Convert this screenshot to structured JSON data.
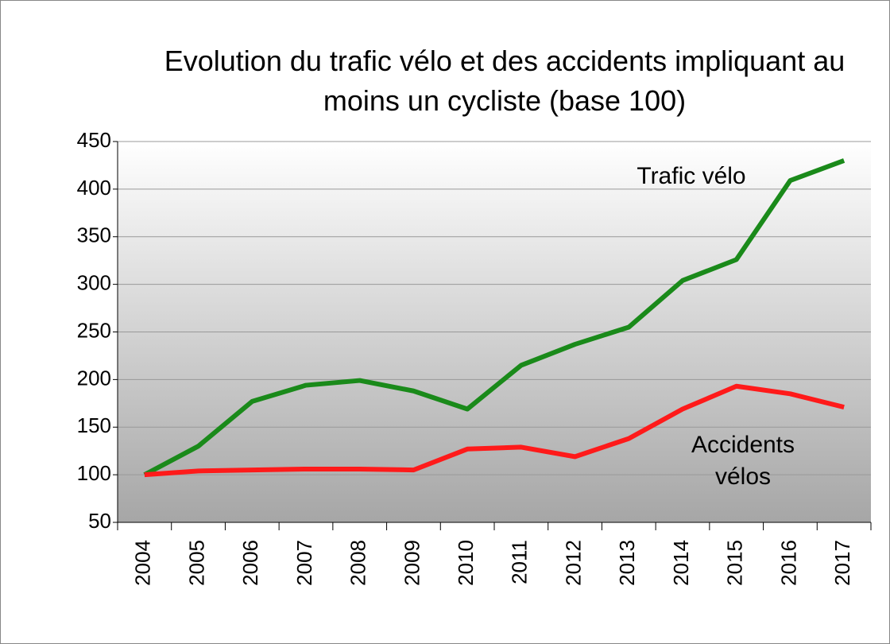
{
  "chart_data": {
    "type": "line",
    "title": "Evolution du trafic vélo et des accidents impliquant au moins un cycliste (base 100)",
    "categories": [
      "2004",
      "2005",
      "2006",
      "2007",
      "2008",
      "2009",
      "2010",
      "2011",
      "2012",
      "2013",
      "2014",
      "2015",
      "2016",
      "2017"
    ],
    "series": [
      {
        "name": "Trafic vélo",
        "color": "#1a8a1a",
        "values": [
          100,
          130,
          177,
          194,
          199,
          188,
          169,
          215,
          237,
          255,
          304,
          326,
          409,
          430
        ]
      },
      {
        "name": "Accidents vélos",
        "color": "#ff1a1a",
        "values": [
          100,
          104,
          105,
          106,
          106,
          105,
          127,
          129,
          119,
          138,
          169,
          193,
          185,
          171
        ]
      }
    ],
    "ylim": [
      50,
      450
    ],
    "yticks": [
      50,
      100,
      150,
      200,
      250,
      300,
      350,
      400,
      450
    ],
    "grid": true
  }
}
